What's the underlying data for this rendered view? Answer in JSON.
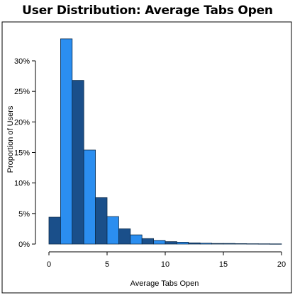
{
  "chart_data": {
    "type": "bar",
    "title": "User Distribution: Average Tabs Open",
    "xlabel": "Average Tabs Open",
    "ylabel": "Proportion of Users",
    "xlim": [
      0,
      20
    ],
    "ylim": [
      0,
      0.35
    ],
    "x_ticks": [
      0,
      5,
      10,
      15,
      20
    ],
    "x_tick_labels": [
      "0",
      "5",
      "10",
      "15",
      "20"
    ],
    "y_ticks": [
      0,
      0.05,
      0.1,
      0.15,
      0.2,
      0.25,
      0.3
    ],
    "y_tick_labels": [
      "0%",
      "5%",
      "10%",
      "15%",
      "20%",
      "25%",
      "30%"
    ],
    "grid": false,
    "bin_width": 1,
    "bins": [
      {
        "x0": 0,
        "x1": 1,
        "value": 0.044
      },
      {
        "x0": 1,
        "x1": 2,
        "value": 0.336
      },
      {
        "x0": 2,
        "x1": 3,
        "value": 0.268
      },
      {
        "x0": 3,
        "x1": 4,
        "value": 0.154
      },
      {
        "x0": 4,
        "x1": 5,
        "value": 0.076
      },
      {
        "x0": 5,
        "x1": 6,
        "value": 0.045
      },
      {
        "x0": 6,
        "x1": 7,
        "value": 0.025
      },
      {
        "x0": 7,
        "x1": 8,
        "value": 0.015
      },
      {
        "x0": 8,
        "x1": 9,
        "value": 0.009
      },
      {
        "x0": 9,
        "x1": 10,
        "value": 0.006
      },
      {
        "x0": 10,
        "x1": 11,
        "value": 0.004
      },
      {
        "x0": 11,
        "x1": 12,
        "value": 0.003
      },
      {
        "x0": 12,
        "x1": 13,
        "value": 0.002
      },
      {
        "x0": 13,
        "x1": 14,
        "value": 0.0015
      },
      {
        "x0": 14,
        "x1": 15,
        "value": 0.001
      },
      {
        "x0": 15,
        "x1": 16,
        "value": 0.001
      },
      {
        "x0": 16,
        "x1": 17,
        "value": 0.0007
      },
      {
        "x0": 17,
        "x1": 18,
        "value": 0.0005
      },
      {
        "x0": 18,
        "x1": 19,
        "value": 0.0004
      },
      {
        "x0": 19,
        "x1": 20,
        "value": 0.0003
      }
    ],
    "colors": {
      "bar_dark": "#1a4f8a",
      "bar_light": "#2b8ef0",
      "bar_stroke": "#0b2a4a",
      "frame": "#000000"
    }
  }
}
